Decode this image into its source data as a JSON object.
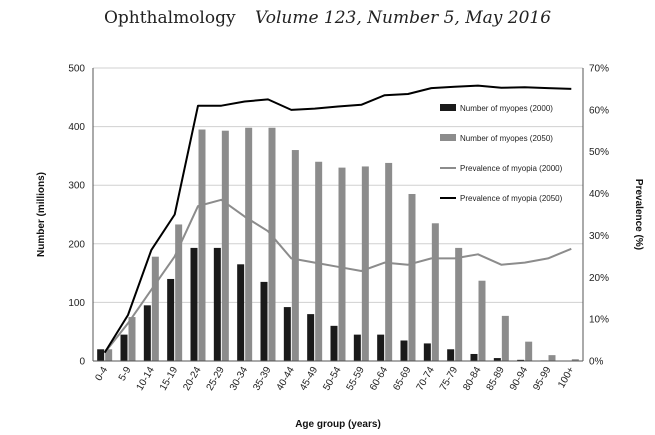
{
  "header": {
    "journal": "Ophthalmology",
    "volume": "Volume 123, Number 5, May 2016"
  },
  "chart_data": {
    "type": "bar",
    "categories": [
      "0-4",
      "5-9",
      "10-14",
      "15-19",
      "20-24",
      "25-29",
      "30-34",
      "35-39",
      "40-44",
      "45-49",
      "50-54",
      "55-59",
      "60-64",
      "65-69",
      "70-74",
      "75-79",
      "80-84",
      "85-89",
      "90-94",
      "95-99",
      "100+"
    ],
    "xlabel": "Age group (years)",
    "ylabel": "Number (millions)",
    "y2label": "Prevalence (%)",
    "ylim": [
      0,
      500
    ],
    "yticks": [
      "0",
      "100",
      "200",
      "300",
      "400",
      "500"
    ],
    "y2lim": [
      0,
      70
    ],
    "y2ticks": [
      "0%",
      "10%",
      "20%",
      "30%",
      "40%",
      "50%",
      "60%",
      "70%"
    ],
    "grid": true,
    "legend_position": "right",
    "bar_series": [
      {
        "name": "Number of myopes (2000)",
        "color": "#1a1a1a",
        "values": [
          20,
          45,
          95,
          140,
          193,
          193,
          165,
          135,
          92,
          80,
          60,
          45,
          45,
          35,
          30,
          20,
          12,
          5,
          2,
          1,
          0
        ]
      },
      {
        "name": "Number of myopes (2050)",
        "color": "#8c8c8c",
        "values": [
          20,
          75,
          178,
          233,
          395,
          393,
          398,
          398,
          360,
          340,
          330,
          332,
          338,
          285,
          235,
          193,
          137,
          77,
          33,
          10,
          3
        ]
      }
    ],
    "line_series": [
      {
        "name": "Prevalence of myopia (2000)",
        "color": "#8c8c8c",
        "values": [
          2,
          9,
          17,
          25,
          37,
          38.5,
          34.5,
          31,
          24.5,
          23.5,
          22.5,
          21.5,
          23.5,
          23,
          24.5,
          24.5,
          25.5,
          23,
          23.5,
          24.5,
          26.8
        ]
      },
      {
        "name": "Prevalence of myopia (2050)",
        "color": "#000000",
        "values": [
          2,
          11,
          26.5,
          35,
          61,
          61,
          62,
          62.5,
          60,
          60.3,
          60.8,
          61.2,
          63.5,
          63.8,
          65.2,
          65.5,
          65.8,
          65.3,
          65.4,
          65.2,
          65
        ]
      }
    ]
  }
}
